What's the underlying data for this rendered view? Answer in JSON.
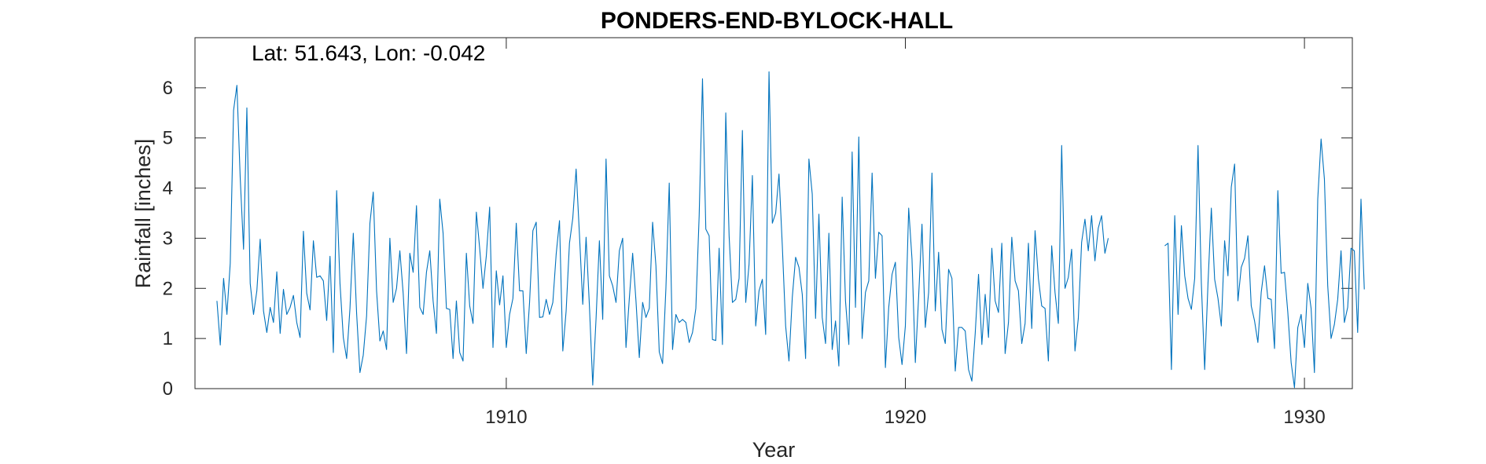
{
  "chart_data": {
    "type": "line",
    "title": "PONDERS-END-BYLOCK-HALL",
    "xlabel": "Year",
    "ylabel": "Rainfall [inches]",
    "annotation": "Lat: 51.643, Lon: -0.042",
    "xlim": [
      1902.2,
      1931.2
    ],
    "ylim": [
      0,
      7
    ],
    "xticks": [
      1910,
      1920,
      1930
    ],
    "yticks": [
      0,
      1,
      2,
      3,
      4,
      5,
      6
    ],
    "grid": false,
    "line_color": "#0072BD",
    "series": [
      {
        "x_start": 1902.75,
        "x_step": 0.0833333,
        "values": [
          1.75,
          0.87,
          2.2,
          1.48,
          2.5,
          5.55,
          6.05,
          4.2,
          2.78,
          5.6,
          2.1,
          1.48,
          1.95,
          2.98,
          1.55,
          1.12,
          1.62,
          1.32,
          2.33,
          1.1,
          1.98,
          1.48,
          1.62,
          1.86,
          1.32,
          1.02,
          3.14,
          1.9,
          1.57,
          2.95,
          2.22,
          2.25,
          2.15,
          1.36,
          2.64,
          0.72,
          3.95,
          2.1,
          1.02,
          0.6,
          1.6,
          3.1,
          1.5,
          0.32,
          0.67,
          1.45,
          3.3,
          3.92,
          1.95,
          0.95,
          1.15,
          0.78,
          3.0,
          1.72,
          2.0,
          2.75,
          1.9,
          0.7,
          2.7,
          2.32,
          3.65,
          1.62,
          1.48,
          2.32,
          2.75,
          1.75,
          1.1,
          3.78,
          3.1,
          1.6,
          1.58,
          0.6,
          1.75,
          0.72,
          0.55,
          2.7,
          1.65,
          1.3,
          3.52,
          2.8,
          2.0,
          2.65,
          3.62,
          0.82,
          2.35,
          1.67,
          2.25,
          0.82,
          1.48,
          1.8,
          3.3,
          1.95,
          1.95,
          0.7,
          1.72,
          3.15,
          3.32,
          1.42,
          1.43,
          1.78,
          1.48,
          1.72,
          2.68,
          3.35,
          0.75,
          1.55,
          2.9,
          3.4,
          4.38,
          3.08,
          1.68,
          3.02,
          1.65,
          0.07,
          1.4,
          2.95,
          1.38,
          4.58,
          2.25,
          2.05,
          1.72,
          2.75,
          3.0,
          0.82,
          1.8,
          2.7,
          1.75,
          0.62,
          1.72,
          1.42,
          1.6,
          3.32,
          2.45,
          0.73,
          0.5,
          2.0,
          4.1,
          0.78,
          1.48,
          1.32,
          1.38,
          1.32,
          0.92,
          1.12,
          1.6,
          3.45,
          6.18,
          3.18,
          3.05,
          0.98,
          0.96,
          2.8,
          0.88,
          5.5,
          3.05,
          1.72,
          1.78,
          2.2,
          5.15,
          1.72,
          2.48,
          4.25,
          1.25,
          1.95,
          2.18,
          1.08,
          6.32,
          3.3,
          3.5,
          4.28,
          2.85,
          1.25,
          0.55,
          1.82,
          2.62,
          2.42,
          1.88,
          0.6,
          4.58,
          3.88,
          1.4,
          3.48,
          1.42,
          0.9,
          3.1,
          0.78,
          1.35,
          0.45,
          3.82,
          1.75,
          0.88,
          4.72,
          1.62,
          5.02,
          1.0,
          1.92,
          2.15,
          4.3,
          2.2,
          3.12,
          3.05,
          0.42,
          1.62,
          2.28,
          2.52,
          1.02,
          0.48,
          1.25,
          3.6,
          2.58,
          0.52,
          1.85,
          3.28,
          1.22,
          1.92,
          4.3,
          1.55,
          2.72,
          1.18,
          0.9,
          2.38,
          2.2,
          0.35,
          1.22,
          1.22,
          1.15,
          0.38,
          0.15,
          1.1,
          2.28,
          0.88,
          1.88,
          1.02,
          2.8,
          1.75,
          1.52,
          2.9,
          0.7,
          1.32,
          3.02,
          2.15,
          1.95,
          0.9,
          1.3,
          2.9,
          1.2,
          3.15,
          2.2,
          1.65,
          1.6,
          0.55,
          2.85,
          1.92,
          1.3,
          4.85,
          2.0,
          2.22,
          2.78,
          0.75,
          1.4,
          2.92,
          3.38,
          2.75,
          3.45,
          2.55,
          3.2,
          3.45,
          2.7,
          3.0,
          null,
          null,
          null,
          null,
          null,
          null,
          null,
          null,
          null,
          null,
          null,
          null,
          null,
          null,
          null,
          null,
          2.85,
          2.9,
          0.38,
          3.45,
          1.48,
          3.25,
          2.25,
          1.8,
          1.58,
          2.2,
          4.85,
          2.1,
          0.38,
          2.1,
          3.6,
          2.18,
          1.8,
          1.25,
          2.95,
          2.25,
          4.02,
          4.48,
          1.75,
          2.42,
          2.6,
          3.05,
          1.65,
          1.35,
          0.92,
          1.92,
          2.45,
          1.8,
          1.78,
          0.8,
          3.95,
          2.3,
          2.32,
          1.52,
          0.52,
          0.02,
          1.22,
          1.48,
          0.82,
          2.1,
          1.6,
          0.32,
          3.78,
          4.98,
          4.18,
          2.05,
          1.0,
          1.28,
          1.78,
          2.75,
          1.32,
          1.62,
          2.8,
          2.75,
          1.12,
          3.78,
          1.98
        ]
      }
    ]
  }
}
